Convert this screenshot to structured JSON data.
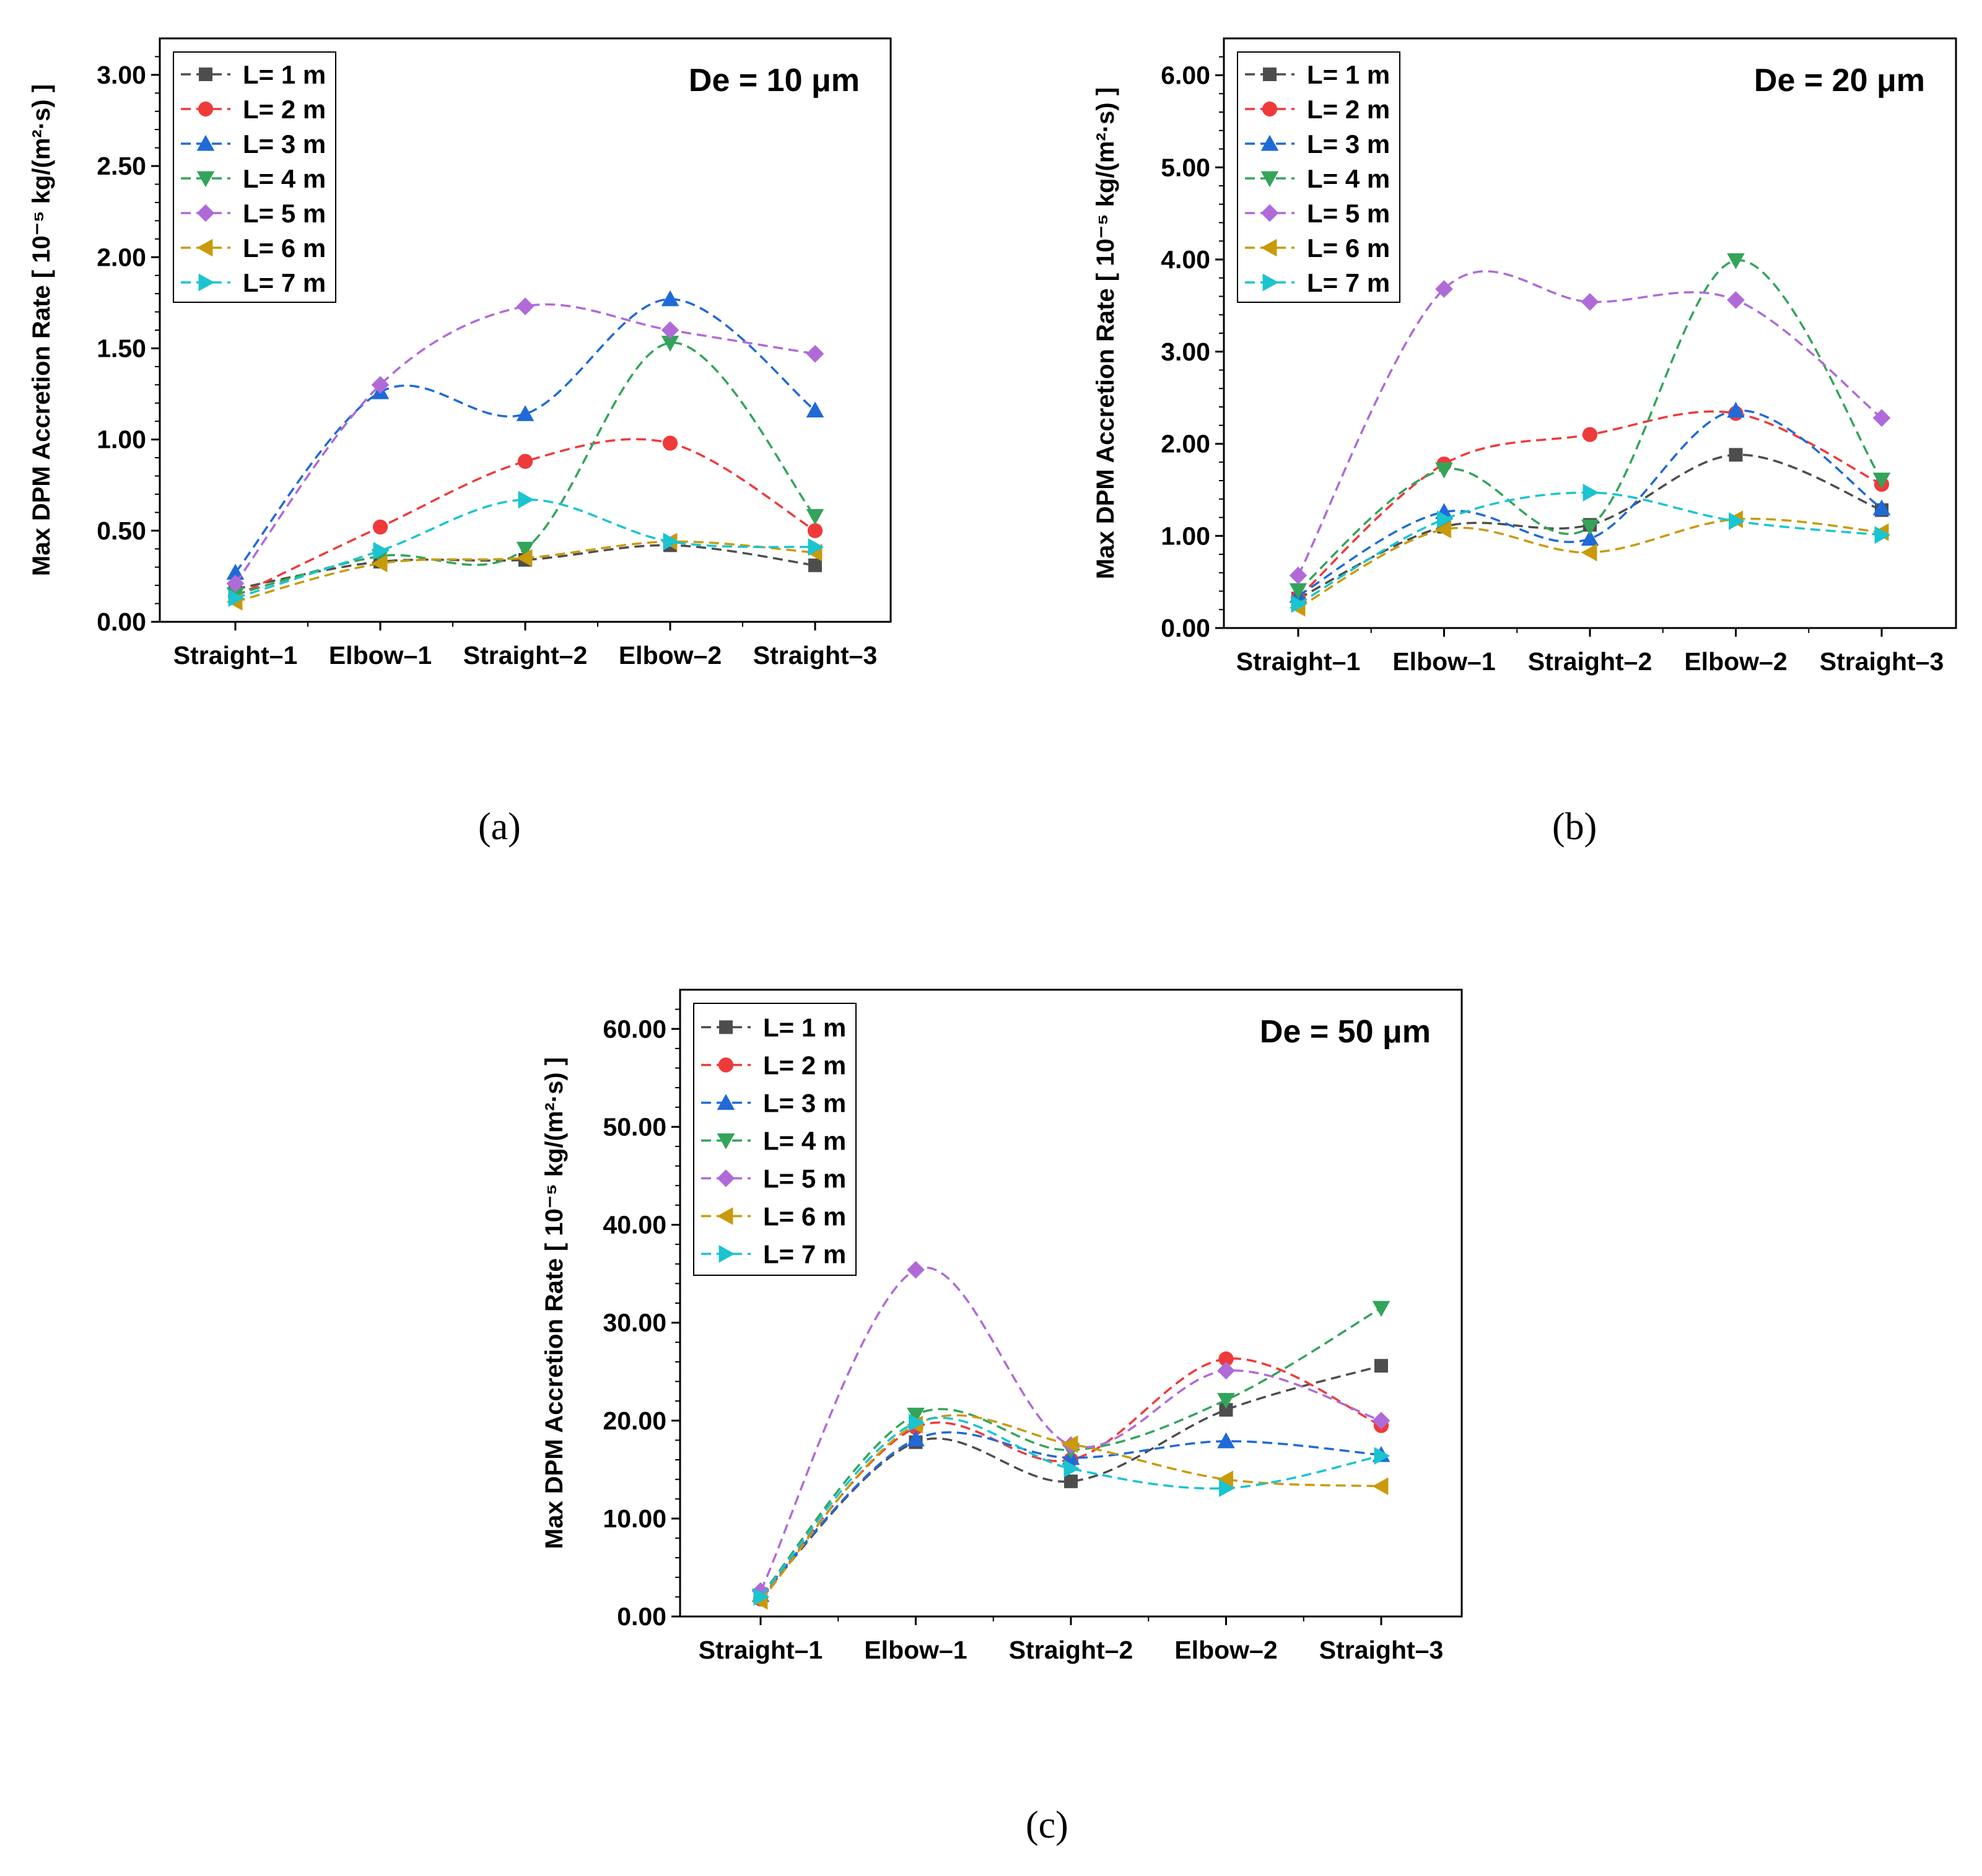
{
  "series_styles": [
    {
      "color": "#4d4d4d",
      "marker": "square"
    },
    {
      "color": "#ef3a3a",
      "marker": "circle"
    },
    {
      "color": "#1f6ad8",
      "marker": "triangle-up"
    },
    {
      "color": "#33a45a",
      "marker": "triangle-down"
    },
    {
      "color": "#b06ad8",
      "marker": "diamond"
    },
    {
      "color": "#c99a0a",
      "marker": "triangle-left"
    },
    {
      "color": "#1ac4d0",
      "marker": "triangle-right"
    }
  ],
  "chart_data": [
    {
      "id": "a",
      "type": "line",
      "caption": "(a)",
      "title": "De = 10 μm",
      "ylabel": "Max DPM Accretion Rate [ 10⁻⁵ kg/(m²·s) ]",
      "xlabel": "",
      "categories": [
        "Straight–1",
        "Elbow–1",
        "Straight–2",
        "Elbow–2",
        "Straight–3"
      ],
      "ylim": [
        0,
        3.2
      ],
      "yticks": [
        0,
        0.5,
        1.0,
        1.5,
        2.0,
        2.5,
        3.0
      ],
      "ytick_labels": [
        "0.00",
        "0.50",
        "1.00",
        "1.50",
        "2.00",
        "2.50",
        "3.00"
      ],
      "legend_position": "top-left",
      "series": [
        {
          "name": "L= 1 m",
          "values": [
            0.18,
            0.33,
            0.34,
            0.42,
            0.31
          ]
        },
        {
          "name": "L= 2 m",
          "values": [
            0.14,
            0.52,
            0.88,
            0.98,
            0.5
          ]
        },
        {
          "name": "L= 3 m",
          "values": [
            0.27,
            1.26,
            1.14,
            1.77,
            1.16
          ]
        },
        {
          "name": "L= 4 m",
          "values": [
            0.15,
            0.36,
            0.4,
            1.53,
            0.58
          ]
        },
        {
          "name": "L= 5 m",
          "values": [
            0.21,
            1.3,
            1.73,
            1.6,
            1.47
          ]
        },
        {
          "name": "L= 6 m",
          "values": [
            0.11,
            0.32,
            0.35,
            0.44,
            0.38
          ]
        },
        {
          "name": "L= 7 m",
          "values": [
            0.13,
            0.39,
            0.67,
            0.44,
            0.41
          ]
        }
      ]
    },
    {
      "id": "b",
      "type": "line",
      "caption": "(b)",
      "title": "De = 20 μm",
      "ylabel": "Max DPM Accretion Rate [ 10⁻⁵ kg/(m²·s) ]",
      "xlabel": "",
      "categories": [
        "Straight–1",
        "Elbow–1",
        "Straight–2",
        "Elbow–2",
        "Straight–3"
      ],
      "ylim": [
        0,
        6.4
      ],
      "yticks": [
        0,
        1,
        2,
        3,
        4,
        5,
        6
      ],
      "ytick_labels": [
        "0.00",
        "1.00",
        "2.00",
        "3.00",
        "4.00",
        "5.00",
        "6.00"
      ],
      "legend_position": "top-left",
      "series": [
        {
          "name": "L= 1 m",
          "values": [
            0.32,
            1.1,
            1.12,
            1.88,
            1.28
          ]
        },
        {
          "name": "L= 2 m",
          "values": [
            0.33,
            1.78,
            2.1,
            2.33,
            1.56
          ]
        },
        {
          "name": "L= 3 m",
          "values": [
            0.35,
            1.26,
            0.97,
            2.36,
            1.3
          ]
        },
        {
          "name": "L= 4 m",
          "values": [
            0.41,
            1.72,
            1.1,
            3.99,
            1.61
          ]
        },
        {
          "name": "L= 5 m",
          "values": [
            0.57,
            3.68,
            3.54,
            3.56,
            2.28
          ]
        },
        {
          "name": "L= 6 m",
          "values": [
            0.22,
            1.07,
            0.82,
            1.18,
            1.04
          ]
        },
        {
          "name": "L= 7 m",
          "values": [
            0.26,
            1.18,
            1.47,
            1.16,
            1.01
          ]
        }
      ]
    },
    {
      "id": "c",
      "type": "line",
      "caption": "(c)",
      "title": "De = 50 μm",
      "ylabel": "Max DPM Accretion Rate [ 10⁻⁵ kg/(m²·s) ]",
      "xlabel": "",
      "categories": [
        "Straight–1",
        "Elbow–1",
        "Straight–2",
        "Elbow–2",
        "Straight–3"
      ],
      "ylim": [
        0,
        64
      ],
      "yticks": [
        0,
        10,
        20,
        30,
        40,
        50,
        60
      ],
      "ytick_labels": [
        "0.00",
        "10.00",
        "20.00",
        "30.00",
        "40.00",
        "50.00",
        "60.00"
      ],
      "legend_position": "top-left",
      "series": [
        {
          "name": "L= 1 m",
          "values": [
            2.0,
            17.8,
            13.8,
            21.1,
            25.6
          ]
        },
        {
          "name": "L= 2 m",
          "values": [
            1.8,
            19.3,
            16.0,
            26.3,
            19.5
          ]
        },
        {
          "name": "L= 3 m",
          "values": [
            2.2,
            18.1,
            16.2,
            17.9,
            16.5
          ]
        },
        {
          "name": "L= 4 m",
          "values": [
            2.1,
            20.6,
            17.0,
            22.1,
            31.5
          ]
        },
        {
          "name": "L= 5 m",
          "values": [
            2.6,
            35.4,
            17.5,
            25.1,
            20.0
          ]
        },
        {
          "name": "L= 6 m",
          "values": [
            1.6,
            19.6,
            17.6,
            14.0,
            13.3
          ]
        },
        {
          "name": "L= 7 m",
          "values": [
            2.0,
            19.8,
            15.1,
            13.1,
            16.4
          ]
        }
      ]
    }
  ]
}
